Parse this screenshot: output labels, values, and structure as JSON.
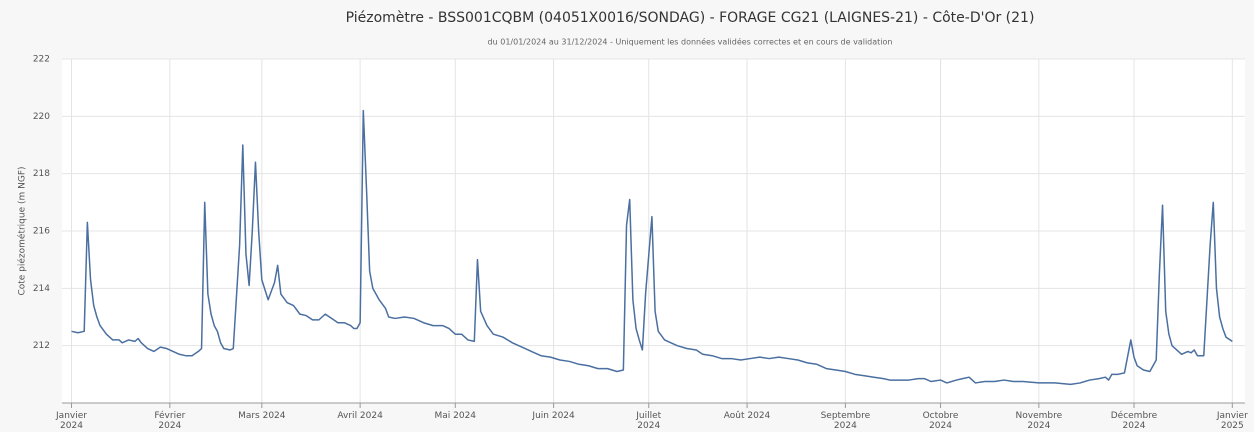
{
  "chart_data": {
    "type": "line",
    "title": "Piézomètre - BSS001CQBM (04051X0016/SONDAG) - FORAGE CG21 (LAIGNES-21) - Côte-D'Or (21)",
    "subtitle": "du 01/01/2024 au 31/12/2024 - Uniquement les données validées correctes et en cours de validation",
    "y_label": "Cote piézométrique (m NGF)",
    "color": "#4a6fa0",
    "grid": true,
    "xlim": [
      -3,
      370
    ],
    "xticks": [
      {
        "value": 0,
        "label": "Janvier 2024"
      },
      {
        "value": 31,
        "label": "Février 2024"
      },
      {
        "value": 60,
        "label": "Mars 2024"
      },
      {
        "value": 91,
        "label": "Avril 2024"
      },
      {
        "value": 121,
        "label": "Mai 2024"
      },
      {
        "value": 152,
        "label": "Juin 2024"
      },
      {
        "value": 182,
        "label": "Juillet 2024"
      },
      {
        "value": 213,
        "label": "Août 2024"
      },
      {
        "value": 244,
        "label": "Septembre 2024"
      },
      {
        "value": 274,
        "label": "Octobre 2024"
      },
      {
        "value": 305,
        "label": "Novembre 2024"
      },
      {
        "value": 335,
        "label": "Décembre 2024"
      },
      {
        "value": 366,
        "label": "Janvier 2025"
      }
    ],
    "ylim": [
      210,
      222
    ],
    "yticks": [
      212,
      214,
      216,
      218,
      220,
      222
    ],
    "x": [
      0,
      2,
      4,
      5,
      6,
      7,
      8,
      9,
      11,
      13,
      15,
      16,
      18,
      20,
      21,
      22,
      24,
      26,
      28,
      30,
      32,
      34,
      36,
      38,
      40,
      41,
      42,
      43,
      44,
      45,
      46,
      47,
      48,
      50,
      51,
      53,
      54,
      55,
      56,
      57,
      58,
      59,
      60,
      62,
      64,
      65,
      66,
      68,
      70,
      72,
      74,
      76,
      78,
      80,
      82,
      84,
      86,
      88,
      89,
      90,
      91,
      92,
      93,
      94,
      95,
      97,
      99,
      100,
      102,
      105,
      108,
      111,
      114,
      117,
      119,
      121,
      123,
      125,
      127,
      128,
      129,
      131,
      133,
      136,
      139,
      142,
      145,
      148,
      151,
      154,
      157,
      160,
      163,
      166,
      169,
      172,
      174,
      175,
      176,
      177,
      178,
      179,
      180,
      181,
      183,
      184,
      185,
      187,
      189,
      191,
      194,
      197,
      199,
      202,
      205,
      208,
      211,
      214,
      217,
      220,
      223,
      226,
      229,
      232,
      235,
      238,
      241,
      244,
      247,
      250,
      253,
      256,
      258,
      261,
      264,
      267,
      269,
      271,
      274,
      276,
      279,
      281,
      283,
      285,
      288,
      291,
      294,
      297,
      300,
      305,
      310,
      315,
      318,
      321,
      324,
      326,
      327,
      328,
      330,
      332,
      334,
      335,
      336,
      338,
      340,
      342,
      343,
      344,
      345,
      346,
      347,
      349,
      350,
      352,
      353,
      354,
      355,
      357,
      359,
      360,
      361,
      362,
      363,
      364,
      366
    ],
    "values": [
      212.5,
      212.45,
      212.5,
      216.3,
      214.3,
      213.4,
      213.0,
      212.7,
      212.4,
      212.2,
      212.2,
      212.1,
      212.2,
      212.15,
      212.25,
      212.1,
      211.9,
      211.8,
      211.95,
      211.9,
      211.8,
      211.7,
      211.65,
      211.65,
      211.8,
      211.9,
      217.0,
      213.8,
      213.1,
      212.7,
      212.5,
      212.1,
      211.9,
      211.85,
      211.9,
      215.5,
      219.0,
      215.2,
      214.1,
      216.0,
      218.4,
      216.0,
      214.3,
      213.6,
      214.2,
      214.8,
      213.8,
      213.5,
      213.4,
      213.1,
      213.05,
      212.9,
      212.9,
      213.1,
      212.95,
      212.8,
      212.8,
      212.7,
      212.6,
      212.6,
      212.8,
      220.2,
      217.5,
      214.6,
      214.0,
      213.6,
      213.3,
      213.0,
      212.95,
      213.0,
      212.95,
      212.8,
      212.7,
      212.7,
      212.6,
      212.4,
      212.4,
      212.2,
      212.15,
      215.0,
      213.2,
      212.7,
      212.4,
      212.3,
      212.1,
      211.95,
      211.8,
      211.65,
      211.6,
      211.5,
      211.45,
      211.35,
      211.3,
      211.2,
      211.2,
      211.1,
      211.15,
      216.2,
      217.1,
      213.6,
      212.6,
      212.2,
      211.85,
      213.8,
      216.5,
      213.2,
      212.5,
      212.2,
      212.1,
      212.0,
      211.9,
      211.85,
      211.7,
      211.65,
      211.55,
      211.55,
      211.5,
      211.55,
      211.6,
      211.55,
      211.6,
      211.55,
      211.5,
      211.4,
      211.35,
      211.2,
      211.15,
      211.1,
      211.0,
      210.95,
      210.9,
      210.85,
      210.8,
      210.8,
      210.8,
      210.85,
      210.85,
      210.75,
      210.8,
      210.7,
      210.8,
      210.85,
      210.9,
      210.7,
      210.75,
      210.75,
      210.8,
      210.75,
      210.75,
      210.7,
      210.7,
      210.65,
      210.7,
      210.8,
      210.85,
      210.9,
      210.8,
      211.0,
      211.0,
      211.05,
      212.2,
      211.6,
      211.3,
      211.15,
      211.1,
      211.5,
      214.5,
      216.9,
      213.2,
      212.4,
      212.0,
      211.8,
      211.7,
      211.8,
      211.75,
      211.85,
      211.65,
      211.65,
      215.5,
      217.0,
      214.0,
      213.0,
      212.6,
      212.3,
      212.15
    ]
  }
}
